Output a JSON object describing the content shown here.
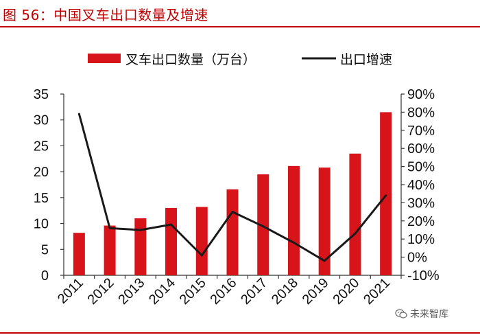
{
  "figure": {
    "title": "图 56：中国叉车出口数量及增速"
  },
  "watermark": {
    "text": "未来智库",
    "icon": "wechat-icon"
  },
  "chart_data": {
    "type": "bar",
    "categories": [
      "2011",
      "2012",
      "2013",
      "2014",
      "2015",
      "2016",
      "2017",
      "2018",
      "2019",
      "2020",
      "2021"
    ],
    "series": [
      {
        "name": "叉车出口数量（万台）",
        "type": "bar",
        "axis": "left",
        "color": "#d7141a",
        "values": [
          8.2,
          9.6,
          11.0,
          13.0,
          13.2,
          16.6,
          19.5,
          21.1,
          20.8,
          23.5,
          31.5
        ]
      },
      {
        "name": "出口增速",
        "type": "line",
        "axis": "right",
        "color": "#1a1a1a",
        "values": [
          79,
          16,
          15,
          18,
          1,
          25,
          17,
          8,
          -2,
          13,
          34
        ]
      }
    ],
    "left_axis": {
      "min": 0,
      "max": 35,
      "step": 5,
      "ticks": [
        "0",
        "5",
        "10",
        "15",
        "20",
        "25",
        "30",
        "35"
      ]
    },
    "right_axis": {
      "min": -10,
      "max": 90,
      "step": 10,
      "unit": "%",
      "ticks": [
        "-10%",
        "0%",
        "10%",
        "20%",
        "30%",
        "40%",
        "50%",
        "60%",
        "70%",
        "80%",
        "90%"
      ]
    },
    "legend": {
      "position": "top"
    },
    "grid": false
  }
}
